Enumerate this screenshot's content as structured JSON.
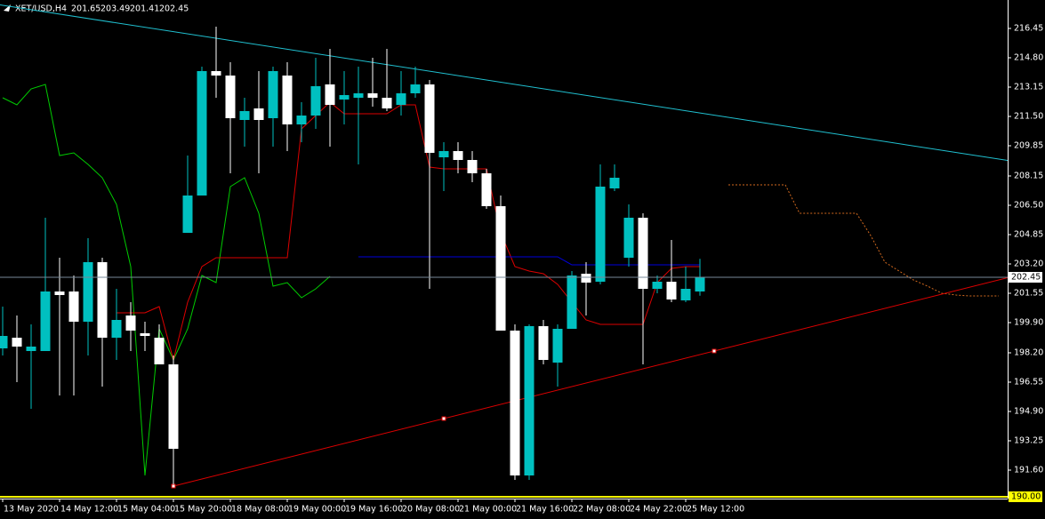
{
  "chart_data": {
    "type": "candlestick",
    "title": "XET/USD,H4",
    "categories": [
      "13 May 2020",
      null,
      null,
      null,
      "14 May 12:00",
      null,
      null,
      null,
      "15 May 04:00",
      null,
      null,
      null,
      "15 May 20:00",
      null,
      null,
      null,
      "18 May 08:00",
      null,
      null,
      null,
      "19 May 00:00",
      null,
      null,
      null,
      "19 May 16:00",
      null,
      null,
      null,
      "20 May 08:00",
      null,
      null,
      null,
      "21 May 00:00",
      null,
      null,
      null,
      "21 May 16:00",
      null,
      null,
      null,
      "22 May 08:00",
      null,
      null,
      null,
      "24 May 22:00",
      null,
      null,
      null,
      "25 May 12:00",
      null,
      null,
      null,
      null,
      null,
      null,
      null,
      null,
      null,
      null,
      null,
      null,
      null,
      null,
      null,
      null,
      null,
      null,
      null,
      null,
      null,
      null
    ],
    "open": [
      198.45,
      199.05,
      198.3,
      198.3,
      201.65,
      201.65,
      199.95,
      203.3,
      199.05,
      200.3,
      199.3,
      199.05,
      197.55,
      204.95,
      207.05,
      214.05,
      213.8,
      211.3,
      211.95,
      211.4,
      213.8,
      211.05,
      211.55,
      213.3,
      212.45,
      212.55,
      212.8,
      212.55,
      212.15,
      212.8,
      213.3,
      209.2,
      209.55,
      209.05,
      208.3,
      206.45,
      199.45,
      191.3,
      199.7,
      197.65,
      199.55,
      202.65,
      202.2,
      207.45,
      203.55,
      205.8,
      201.8,
      202.2,
      201.15,
      201.65,
      null,
      null,
      null,
      null,
      null,
      null,
      null,
      null,
      null,
      null,
      null,
      null,
      null,
      null,
      null,
      null,
      null,
      null,
      null,
      null,
      null
    ],
    "high": [
      200.8,
      200.3,
      199.8,
      205.8,
      203.55,
      202.55,
      204.65,
      203.55,
      201.8,
      201.05,
      199.95,
      199.8,
      198.05,
      209.3,
      214.3,
      216.55,
      214.55,
      212.55,
      214.05,
      214.3,
      214.55,
      212.3,
      214.8,
      215.3,
      214.05,
      214.3,
      214.8,
      215.3,
      214.05,
      214.3,
      213.55,
      210.05,
      210.05,
      209.55,
      208.55,
      207.05,
      199.8,
      199.8,
      200.05,
      199.8,
      202.8,
      203.3,
      208.8,
      208.8,
      206.55,
      206.05,
      202.55,
      204.55,
      203.05,
      203.49,
      null,
      null,
      null,
      null,
      null,
      null,
      null,
      null,
      null,
      null,
      null,
      null,
      null,
      null,
      null,
      null,
      null,
      null,
      null,
      null,
      null
    ],
    "low": [
      198.05,
      196.55,
      195.05,
      198.3,
      195.8,
      195.8,
      198.05,
      196.3,
      197.8,
      198.3,
      198.3,
      197.55,
      190.8,
      204.95,
      207.05,
      212.55,
      208.3,
      209.8,
      208.3,
      209.8,
      209.55,
      210.05,
      210.8,
      209.8,
      211.05,
      208.8,
      212.05,
      211.8,
      211.55,
      212.55,
      201.8,
      207.3,
      208.3,
      207.8,
      206.3,
      199.45,
      191.05,
      191.05,
      197.55,
      196.3,
      199.55,
      200.3,
      202.05,
      207.3,
      203.05,
      197.55,
      201.55,
      201.05,
      201.05,
      201.41,
      null,
      null,
      null,
      null,
      null,
      null,
      null,
      null,
      null,
      null,
      null,
      null,
      null,
      null,
      null,
      null,
      null,
      null,
      null,
      null,
      null
    ],
    "close": [
      199.15,
      198.55,
      198.55,
      201.65,
      201.45,
      199.95,
      203.3,
      199.05,
      200.05,
      199.45,
      199.15,
      197.55,
      192.8,
      207.05,
      214.05,
      213.8,
      211.4,
      211.8,
      211.3,
      214.05,
      211.05,
      211.55,
      213.2,
      212.15,
      212.7,
      212.8,
      212.55,
      211.95,
      212.8,
      213.3,
      209.45,
      209.55,
      209.05,
      208.3,
      206.45,
      199.45,
      191.3,
      199.7,
      197.8,
      199.55,
      202.55,
      202.15,
      207.55,
      208.05,
      205.8,
      201.8,
      202.2,
      201.2,
      201.8,
      202.45,
      null,
      null,
      null,
      null,
      null,
      null,
      null,
      null,
      null,
      null,
      null,
      null,
      null,
      null,
      null,
      null,
      null,
      null,
      null,
      null,
      null
    ],
    "up_color": "#00c0c0",
    "down_color": "#ffffff",
    "ylim": [
      190.0,
      218.05
    ],
    "yticks": [
      {
        "value": 191.6,
        "label": "191.60"
      },
      193.25,
      {
        "value": 194.9,
        "label": "194.90"
      },
      196.55,
      {
        "value": 198.2,
        "label": "198.20"
      },
      {
        "value": 199.9,
        "label": "199.90"
      },
      201.55,
      {
        "value": 203.2,
        "label": "203.20"
      },
      204.85,
      {
        "value": 206.5,
        "label": "206.50"
      },
      208.15,
      209.85,
      {
        "value": 211.5,
        "label": "211.50"
      },
      213.15,
      {
        "value": 214.8,
        "label": "214.80"
      },
      216.45
    ],
    "grid": false,
    "lines": [
      {
        "color": "#00cc00",
        "dash": false,
        "values": [
          212.55,
          212.15,
          213.05,
          213.3,
          209.3,
          209.45,
          208.8,
          208.05,
          206.55,
          203.05,
          191.3,
          199.55,
          197.8,
          199.55,
          202.55,
          202.15,
          207.55,
          208.05,
          206.05,
          201.95,
          202.15,
          201.3,
          201.8,
          202.5,
          null,
          null,
          null,
          null,
          null,
          null,
          null,
          null,
          null,
          null,
          null,
          null,
          null,
          null,
          null,
          null,
          null,
          null,
          null,
          null,
          null,
          null,
          null,
          null,
          null,
          null,
          null,
          null,
          null,
          null,
          null,
          null,
          null,
          null,
          null,
          null,
          null,
          null,
          null,
          null,
          null,
          null,
          null,
          null,
          null,
          null,
          null
        ]
      },
      {
        "color": "#dd0000",
        "dash": false,
        "values": [
          null,
          null,
          null,
          null,
          null,
          null,
          null,
          null,
          200.45,
          200.45,
          200.45,
          200.8,
          197.8,
          201.05,
          203.05,
          203.55,
          203.55,
          203.55,
          203.55,
          203.55,
          203.55,
          210.8,
          211.55,
          212.3,
          211.65,
          211.65,
          211.65,
          211.65,
          212.15,
          212.15,
          208.65,
          208.55,
          208.55,
          208.55,
          208.55,
          204.95,
          203.05,
          202.8,
          202.65,
          202.05,
          201.05,
          200.05,
          199.8,
          199.8,
          199.8,
          199.8,
          202.15,
          202.95,
          203.05,
          203.05,
          null,
          null,
          null,
          null,
          null,
          null,
          null,
          null,
          null,
          null,
          null,
          null,
          null,
          null,
          null,
          null,
          null,
          null,
          null,
          null,
          null
        ]
      },
      {
        "color": "#0000dd",
        "dash": false,
        "values": [
          null,
          null,
          null,
          null,
          null,
          null,
          null,
          null,
          null,
          null,
          null,
          null,
          null,
          null,
          null,
          null,
          null,
          null,
          null,
          null,
          null,
          null,
          null,
          null,
          null,
          203.6,
          203.6,
          203.6,
          203.6,
          203.6,
          203.6,
          203.6,
          203.6,
          203.6,
          203.6,
          203.6,
          203.6,
          203.6,
          203.6,
          203.6,
          203.15,
          203.15,
          203.15,
          203.15,
          203.15,
          203.15,
          203.15,
          203.15,
          203.15,
          203.15,
          null,
          null,
          null,
          null,
          null,
          null,
          null,
          null,
          null,
          null,
          null,
          null,
          null,
          null,
          null,
          null,
          null,
          null,
          null,
          null,
          null
        ]
      },
      {
        "color": "#d2691e",
        "dash": true,
        "values": [
          null,
          null,
          null,
          null,
          null,
          null,
          null,
          null,
          null,
          null,
          null,
          null,
          null,
          null,
          null,
          null,
          null,
          null,
          null,
          null,
          null,
          null,
          null,
          null,
          null,
          null,
          null,
          null,
          null,
          null,
          null,
          null,
          null,
          null,
          null,
          null,
          null,
          null,
          null,
          null,
          null,
          null,
          null,
          null,
          null,
          null,
          null,
          null,
          null,
          null,
          null,
          207.65,
          207.65,
          207.65,
          207.65,
          207.65,
          206.05,
          206.05,
          206.05,
          206.05,
          206.05,
          204.8,
          203.3,
          202.8,
          202.3,
          201.95,
          201.55,
          201.45,
          201.4,
          201.4,
          201.4
        ]
      }
    ],
    "trendlines": [
      {
        "color": "#20c0d0",
        "markers": false,
        "values": [
          217.75,
          null,
          null,
          null,
          null,
          null,
          null,
          null,
          null,
          null,
          null,
          null,
          null,
          null,
          null,
          null,
          null,
          null,
          null,
          null,
          null,
          null,
          null,
          null,
          null,
          null,
          null,
          null,
          null,
          null,
          null,
          null,
          null,
          null,
          null,
          null,
          null,
          null,
          null,
          null,
          null,
          null,
          null,
          null,
          null,
          null,
          null,
          null,
          null,
          null,
          null,
          null,
          null,
          null,
          null,
          null,
          null,
          null,
          null,
          null,
          null,
          null,
          null,
          null,
          null,
          null,
          null,
          null,
          null,
          null,
          209.1
        ]
      },
      {
        "color": "#dd0000",
        "markers": true,
        "values": [
          null,
          null,
          null,
          null,
          null,
          null,
          null,
          null,
          null,
          null,
          null,
          null,
          190.7,
          null,
          null,
          null,
          null,
          null,
          null,
          null,
          null,
          null,
          null,
          null,
          null,
          null,
          null,
          null,
          null,
          null,
          null,
          null,
          null,
          null,
          null,
          null,
          null,
          null,
          null,
          null,
          null,
          null,
          null,
          null,
          null,
          null,
          null,
          null,
          null,
          null,
          198.3,
          null,
          null,
          null,
          null,
          null,
          null,
          null,
          null,
          null,
          null,
          null,
          null,
          null,
          null,
          null,
          null,
          null,
          null,
          null,
          null
        ]
      }
    ],
    "price_line_color": "#778899",
    "alert_line": {
      "value": 190.0,
      "label": "190.00",
      "color": "#ffff00"
    }
  }
}
